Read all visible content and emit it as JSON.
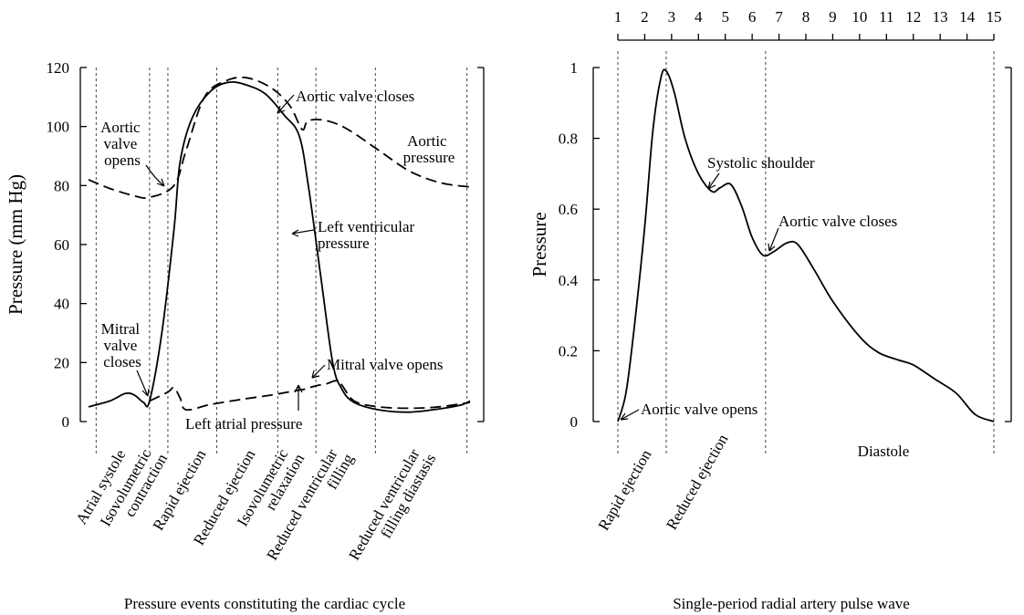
{
  "chart_data": [
    {
      "type": "line",
      "title": "",
      "caption": "Pressure events constituting the cardiac cycle",
      "ylabel": "Pressure (mm Hg)",
      "xlabel": "",
      "ylim": [
        0,
        120
      ],
      "yticks": [
        0,
        20,
        40,
        60,
        80,
        100,
        120
      ],
      "grid": false,
      "phases": [
        {
          "label": "Atrial systole"
        },
        {
          "label": "Isovolumetric contraction",
          "lines": [
            "Isovolumetric",
            "contraction"
          ]
        },
        {
          "label": "Rapid ejection"
        },
        {
          "label": "Reduced ejection"
        },
        {
          "label": "Isovolumetric relaxation",
          "lines": [
            "Isovolumetric",
            "relaxation"
          ]
        },
        {
          "label": "Reduced ventricular filling",
          "lines": [
            "Reduced ventricular",
            "filling"
          ]
        },
        {
          "label": "Reduced ventricular filling diastasis",
          "lines": [
            "Reduced ventricular",
            "filling diastasis"
          ]
        }
      ],
      "series": [
        {
          "name": "Aortic pressure",
          "style": "dashed",
          "points": [
            [
              0,
              82
            ],
            [
              0.07,
              79
            ],
            [
              0.15,
              76.5
            ],
            [
              0.2,
              76
            ],
            [
              0.28,
              80
            ],
            [
              0.32,
              92
            ],
            [
              0.38,
              110
            ],
            [
              0.45,
              115.5
            ],
            [
              0.52,
              116.5
            ],
            [
              0.6,
              113
            ],
            [
              0.66,
              107
            ],
            [
              0.7,
              99
            ],
            [
              0.72,
              102
            ],
            [
              0.78,
              102
            ],
            [
              0.85,
              99
            ],
            [
              0.95,
              92
            ],
            [
              1.05,
              85
            ],
            [
              1.15,
              81
            ],
            [
              1.25,
              79.5
            ]
          ]
        },
        {
          "name": "Left ventricular pressure",
          "style": "solid",
          "points": [
            [
              0,
              5
            ],
            [
              0.07,
              7
            ],
            [
              0.12,
              9.5
            ],
            [
              0.15,
              9
            ],
            [
              0.18,
              6.5
            ],
            [
              0.2,
              7
            ],
            [
              0.24,
              30
            ],
            [
              0.28,
              65
            ],
            [
              0.3,
              88
            ],
            [
              0.34,
              103
            ],
            [
              0.4,
              112
            ],
            [
              0.46,
              115
            ],
            [
              0.52,
              114
            ],
            [
              0.58,
              111
            ],
            [
              0.64,
              104
            ],
            [
              0.69,
              97
            ],
            [
              0.72,
              80
            ],
            [
              0.76,
              50
            ],
            [
              0.8,
              20
            ],
            [
              0.83,
              11
            ],
            [
              0.87,
              6.5
            ],
            [
              0.95,
              4
            ],
            [
              1.05,
              3.2
            ],
            [
              1.15,
              4.3
            ],
            [
              1.22,
              5.6
            ],
            [
              1.25,
              7
            ]
          ]
        },
        {
          "name": "Left atrial pressure",
          "style": "dashed",
          "points": [
            [
              0.2,
              7
            ],
            [
              0.26,
              10
            ],
            [
              0.28,
              11.5
            ],
            [
              0.3,
              8
            ],
            [
              0.32,
              4
            ],
            [
              0.4,
              5.8
            ],
            [
              0.5,
              7.5
            ],
            [
              0.6,
              9
            ],
            [
              0.68,
              10.5
            ],
            [
              0.71,
              11
            ],
            [
              0.74,
              12
            ],
            [
              0.78,
              12.8
            ],
            [
              0.82,
              13.5
            ],
            [
              0.87,
              7
            ],
            [
              0.95,
              5
            ],
            [
              1.05,
              4.5
            ],
            [
              1.15,
              5
            ],
            [
              1.25,
              6.5
            ]
          ]
        }
      ],
      "annotations": [
        {
          "text": "Aortic valve opens",
          "lines": [
            "Aortic",
            "valve",
            "opens"
          ]
        },
        {
          "text": "Aortic valve closes"
        },
        {
          "text": "Aortic pressure",
          "lines": [
            "Aortic",
            "pressure"
          ]
        },
        {
          "text": "Left ventricular pressure",
          "lines": [
            "Left ventricular",
            "pressure"
          ]
        },
        {
          "text": "Mitral valve closes",
          "lines": [
            "Mitral",
            "valve",
            "closes"
          ]
        },
        {
          "text": "Mitral valve opens"
        },
        {
          "text": "Left atrial pressure"
        }
      ]
    },
    {
      "type": "line",
      "title": "",
      "caption": "Single-period radial artery pulse wave",
      "ylabel": "Pressure",
      "xlabel": "",
      "xlim": [
        1,
        15
      ],
      "xticks": [
        1,
        2,
        3,
        4,
        5,
        6,
        7,
        8,
        9,
        10,
        11,
        12,
        13,
        14,
        15
      ],
      "ylim": [
        0,
        1
      ],
      "yticks": [
        "0",
        "0.2",
        "0.4",
        "0.6",
        "0.8",
        "1"
      ],
      "grid": false,
      "phase_positions": [
        1,
        2.8,
        6.5,
        15
      ],
      "phases": [
        {
          "label": "Rapid ejection"
        },
        {
          "label": "Reduced ejection"
        },
        {
          "label": "Diastole"
        }
      ],
      "series": [
        {
          "name": "",
          "style": "solid",
          "points": [
            [
              1,
              0
            ],
            [
              1.3,
              0.08
            ],
            [
              1.6,
              0.26
            ],
            [
              2,
              0.55
            ],
            [
              2.3,
              0.82
            ],
            [
              2.6,
              0.97
            ],
            [
              2.8,
              0.99
            ],
            [
              3.1,
              0.93
            ],
            [
              3.5,
              0.8
            ],
            [
              4,
              0.7
            ],
            [
              4.5,
              0.65
            ],
            [
              4.8,
              0.66
            ],
            [
              5.2,
              0.67
            ],
            [
              5.6,
              0.61
            ],
            [
              6,
              0.52
            ],
            [
              6.4,
              0.47
            ],
            [
              6.8,
              0.48
            ],
            [
              7.3,
              0.505
            ],
            [
              7.7,
              0.5
            ],
            [
              8.3,
              0.43
            ],
            [
              9,
              0.34
            ],
            [
              10,
              0.24
            ],
            [
              10.7,
              0.195
            ],
            [
              11.4,
              0.175
            ],
            [
              12,
              0.16
            ],
            [
              12.8,
              0.12
            ],
            [
              13.6,
              0.08
            ],
            [
              14.3,
              0.02
            ],
            [
              15,
              0
            ]
          ]
        }
      ],
      "annotations": [
        {
          "text": "Systolic shoulder"
        },
        {
          "text": "Aortic valve closes"
        },
        {
          "text": "Aortic valve opens"
        }
      ]
    }
  ]
}
